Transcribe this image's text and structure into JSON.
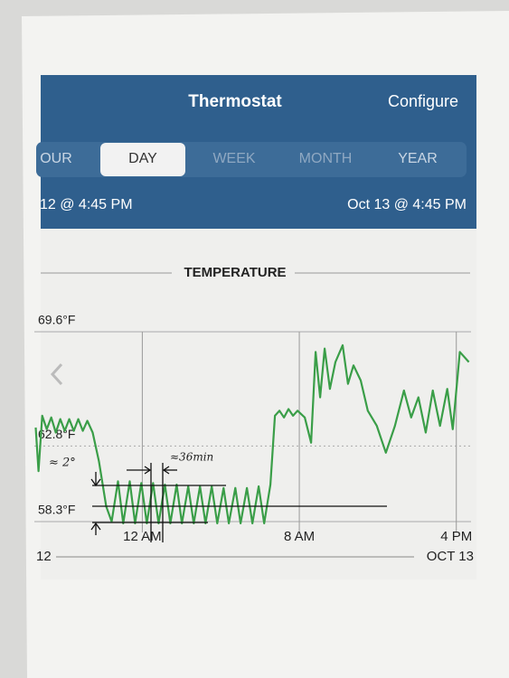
{
  "header": {
    "title": "Thermostat",
    "action": "Configure"
  },
  "tabs": {
    "items": [
      "OUR",
      "DAY",
      "WEEK",
      "MONTH",
      "YEAR"
    ],
    "selected": "DAY"
  },
  "range": {
    "start": "12 @ 4:45 PM",
    "end": "Oct 13 @ 4:45 PM"
  },
  "chart_data": {
    "type": "line",
    "title": "TEMPERATURE",
    "color": "#3a9e48",
    "grid": true,
    "x": [
      -5.43,
      -5.29,
      -5.1,
      -4.87,
      -4.64,
      -4.41,
      -4.18,
      -3.95,
      -3.72,
      -3.49,
      -3.26,
      -3.03,
      -2.8,
      -2.53,
      -2.21,
      -1.84,
      -1.56,
      -1.24,
      -0.97,
      -0.64,
      -0.37,
      -0.05,
      0.23,
      0.55,
      0.83,
      1.15,
      1.43,
      1.75,
      2.02,
      2.34,
      2.62,
      2.94,
      3.22,
      3.54,
      3.82,
      4.14,
      4.41,
      4.74,
      5.01,
      5.33,
      5.61,
      5.93,
      6.21,
      6.53,
      6.76,
      6.99,
      7.22,
      7.45,
      7.68,
      7.91,
      8.28,
      8.6,
      8.83,
      9.06,
      9.29,
      9.56,
      9.84,
      10.21,
      10.48,
      10.76,
      11.13,
      11.49,
      11.95,
      12.41,
      12.87,
      13.33,
      13.7,
      14.07,
      14.44,
      14.8,
      15.17,
      15.54,
      15.82,
      16.18,
      16.64
    ],
    "values": [
      63.9,
      61.3,
      64.6,
      63.8,
      64.5,
      63.6,
      64.4,
      63.7,
      64.4,
      63.7,
      64.4,
      63.7,
      64.3,
      63.6,
      61.9,
      59.2,
      58.3,
      60.7,
      58.2,
      60.7,
      58.2,
      60.6,
      58.2,
      60.6,
      58.2,
      60.5,
      58.2,
      60.5,
      58.2,
      60.4,
      58.2,
      60.4,
      58.2,
      60.4,
      58.2,
      60.3,
      58.2,
      60.3,
      58.2,
      60.3,
      58.2,
      60.4,
      58.2,
      60.5,
      64.6,
      64.9,
      64.5,
      65.0,
      64.6,
      64.9,
      64.5,
      63.0,
      68.4,
      65.7,
      68.6,
      66.2,
      67.8,
      68.8,
      66.5,
      67.6,
      66.7,
      64.9,
      64.0,
      62.4,
      64.0,
      66.1,
      64.5,
      65.7,
      63.6,
      66.1,
      64.0,
      66.2,
      63.8,
      68.4,
      67.8
    ],
    "xlim": [
      -5.5,
      16.75
    ],
    "xticks": [
      {
        "value": 0,
        "label": "12 AM"
      },
      {
        "value": 8,
        "label": "8 AM"
      },
      {
        "value": 16,
        "label": "4 PM"
      }
    ],
    "ylim": [
      58.3,
      69.6
    ],
    "yticks": [
      {
        "value": 58.3,
        "label": "58.3°F"
      },
      {
        "value": 62.8,
        "label": "62.8°F"
      },
      {
        "value": 69.6,
        "label": "69.6°F"
      }
    ],
    "date_labels": [
      "12",
      "OCT 13"
    ],
    "annotations": [
      "≈ 2°",
      "≈36min"
    ]
  }
}
